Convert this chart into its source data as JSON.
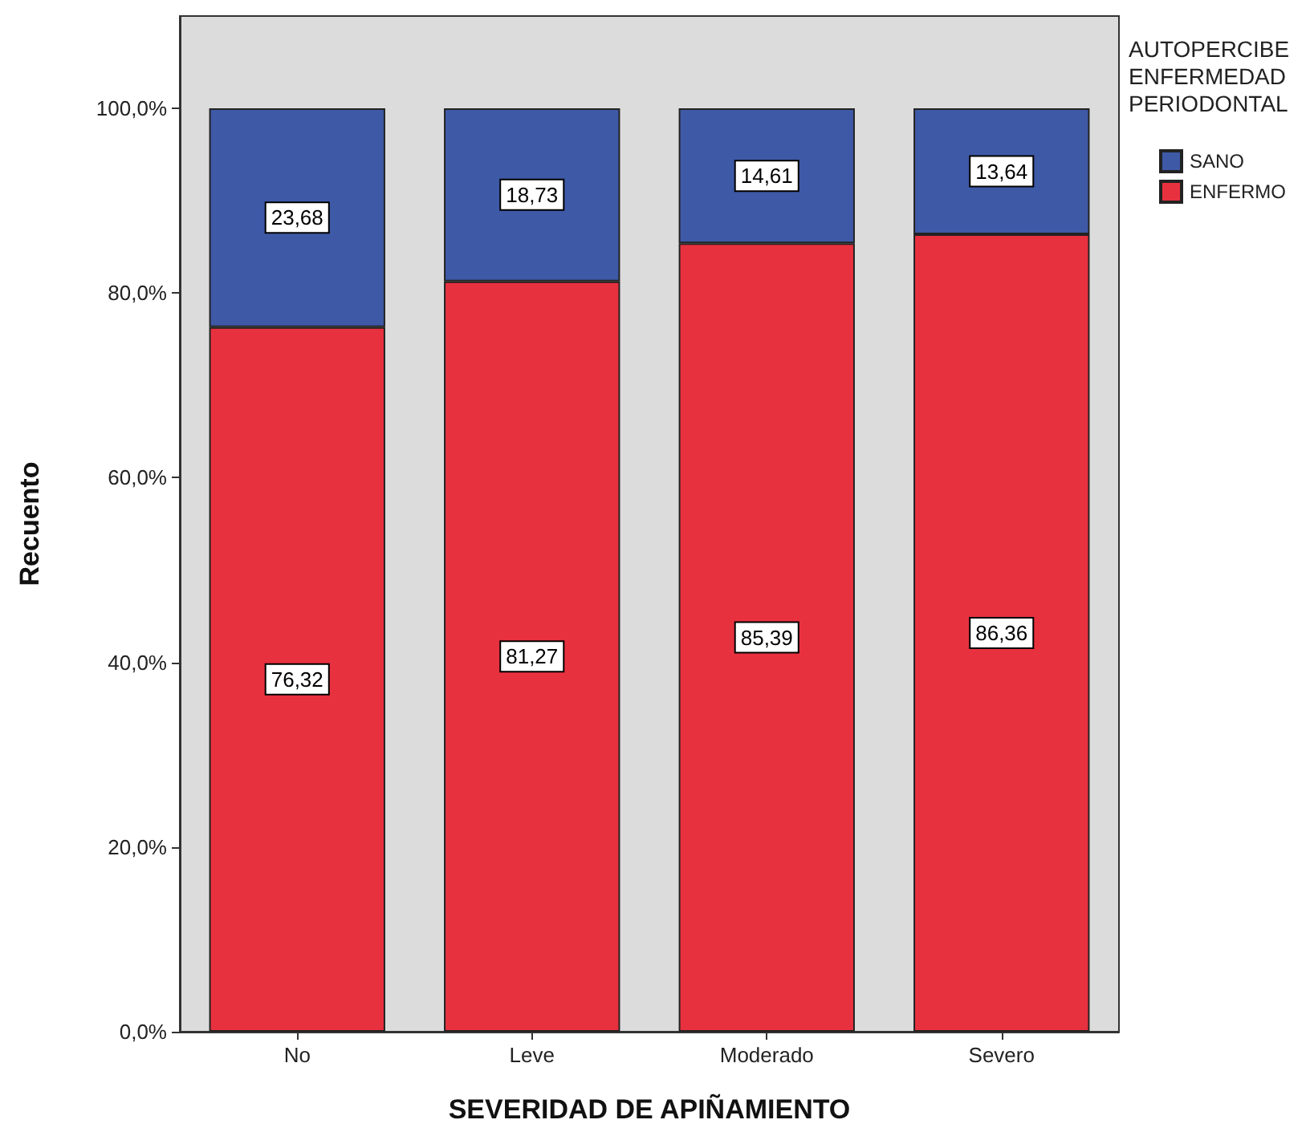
{
  "chart_data": {
    "type": "bar",
    "stacked": true,
    "xlabel": "SEVERIDAD DE APIÑAMIENTO",
    "ylabel": "Recuento",
    "legend_title": "AUTOPERCIBE ENFERMEDAD PERIODONTAL",
    "categories": [
      "No",
      "Leve",
      "Moderado",
      "Severo"
    ],
    "series": [
      {
        "name": "ENFERMO",
        "color": "#e8313f",
        "values": [
          76.32,
          81.27,
          85.39,
          86.36
        ],
        "value_labels": [
          "76,32",
          "81,27",
          "85,39",
          "86,36"
        ]
      },
      {
        "name": "SANO",
        "color": "#3e59a6",
        "values": [
          23.68,
          18.73,
          14.61,
          13.64
        ],
        "value_labels": [
          "23,68",
          "18,73",
          "14,61",
          "13,64"
        ]
      }
    ],
    "ylim": [
      0,
      110
    ],
    "yticks": [
      {
        "value": 0,
        "label": "0,0%"
      },
      {
        "value": 20,
        "label": "20,0%"
      },
      {
        "value": 40,
        "label": "40,0%"
      },
      {
        "value": 60,
        "label": "60,0%"
      },
      {
        "value": 80,
        "label": "80,0%"
      },
      {
        "value": 100,
        "label": "100,0%"
      }
    ],
    "legend": "top right",
    "grid": false
  }
}
